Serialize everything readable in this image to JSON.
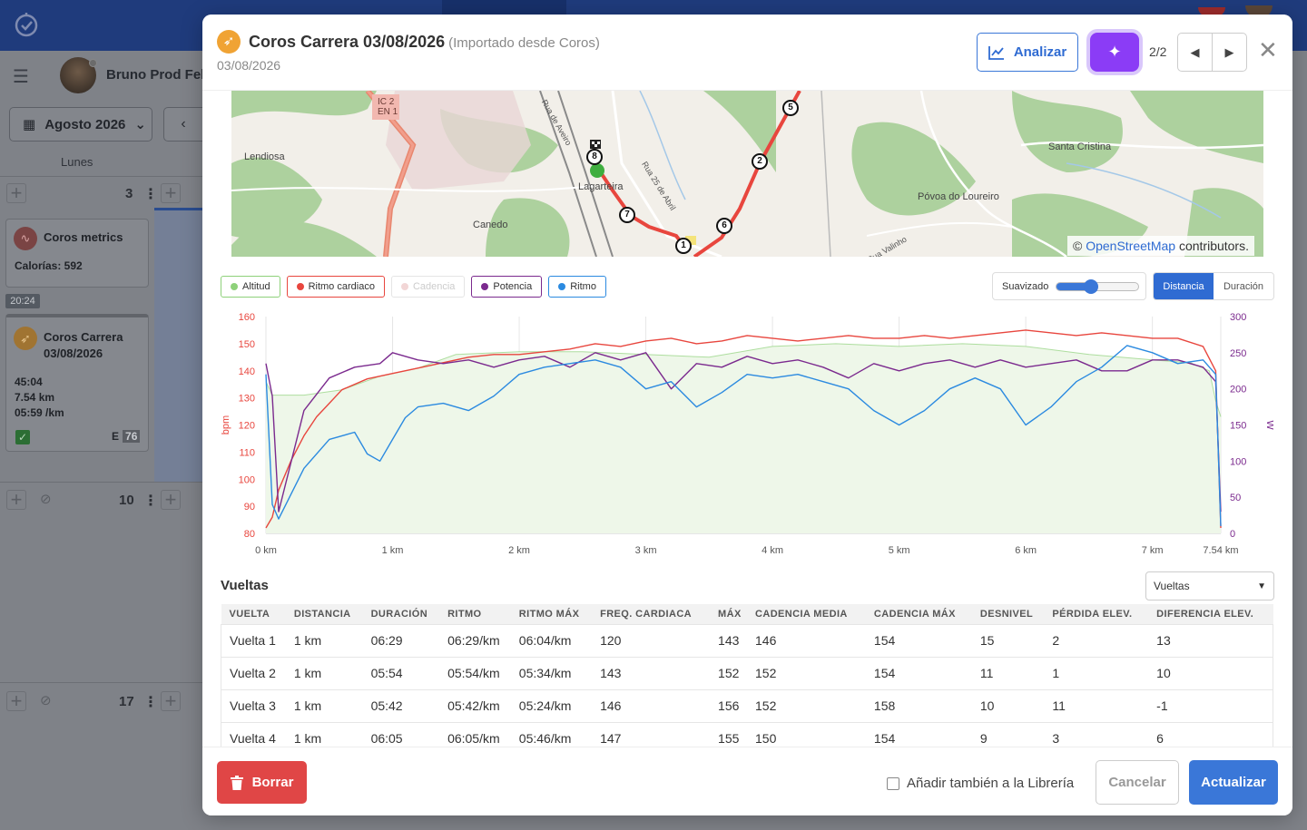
{
  "app": {
    "user_name": "Bruno Prod Feli",
    "month_label": "Agosto 2026",
    "weekday": "Lunes",
    "day_numbers": [
      "3",
      "10",
      "17"
    ],
    "cards": [
      {
        "title": "Coros metrics",
        "lines": [
          "Calorías: 592"
        ]
      },
      {
        "time_badge": "20:24",
        "title_l1": "Coros Carrera",
        "title_l2": "03/08/2026",
        "lines": [
          "45:04",
          "7.54 km",
          "05:59 /km"
        ],
        "effort_label": "E",
        "effort_value": "76"
      }
    ]
  },
  "modal": {
    "title": "Coros Carrera 03/08/2026",
    "subtitle": "(Importado desde Coros)",
    "date": "03/08/2026",
    "analyze_label": "Analizar",
    "pager": "2/2",
    "map_attribution_prefix": "©",
    "map_attribution_link": "OpenStreetMap",
    "map_attribution_suffix": "contributors.",
    "map_places": [
      "IC 2",
      "EN 1",
      "Lendiosa",
      "Lagarteira",
      "Canedo",
      "Santa Cristina",
      "Póvoa do Loureiro",
      "Rua de Aveiro",
      "Rua 25 de Abril",
      "Rua Valinho"
    ],
    "map_markers": [
      "1",
      "2",
      "5",
      "6",
      "7",
      "8"
    ],
    "legend": [
      {
        "label": "Altitud",
        "color": "#8ed17a",
        "active": true
      },
      {
        "label": "Ritmo cardiaco",
        "color": "#e8463e",
        "active": true
      },
      {
        "label": "Cadencia",
        "color": "#f2d6d6",
        "active": false
      },
      {
        "label": "Potencia",
        "color": "#7b2a8e",
        "active": true
      },
      {
        "label": "Ritmo",
        "color": "#2b8ae0",
        "active": true
      }
    ],
    "smoothing_label": "Suavizado",
    "smoothing_value": 0.42,
    "axis_toggle": [
      "Distancia",
      "Duración"
    ],
    "axis_toggle_selected": "Distancia",
    "laps_title": "Vueltas",
    "laps_select": "Vueltas",
    "laps_columns": [
      "VUELTA",
      "DISTANCIA",
      "DURACIÓN",
      "RITMO",
      "RITMO MÁX",
      "FREQ. CARDIACA",
      "MÁX",
      "CADENCIA MEDIA",
      "CADENCIA MÁX",
      "DESNIVEL",
      "PÉRDIDA ELEV.",
      "DIFERENCIA ELEV."
    ],
    "laps_rows": [
      [
        "Vuelta 1",
        "1 km",
        "06:29",
        "06:29/km",
        "06:04/km",
        "120",
        "143",
        "146",
        "154",
        "15",
        "2",
        "13"
      ],
      [
        "Vuelta 2",
        "1 km",
        "05:54",
        "05:54/km",
        "05:34/km",
        "143",
        "152",
        "152",
        "154",
        "11",
        "1",
        "10"
      ],
      [
        "Vuelta 3",
        "1 km",
        "05:42",
        "05:42/km",
        "05:24/km",
        "146",
        "156",
        "152",
        "158",
        "10",
        "11",
        "-1"
      ],
      [
        "Vuelta 4",
        "1 km",
        "06:05",
        "06:05/km",
        "05:46/km",
        "147",
        "155",
        "150",
        "154",
        "9",
        "3",
        "6"
      ]
    ],
    "delete_label": "Borrar",
    "library_label": "Añadir también a la Librería",
    "cancel_label": "Cancelar",
    "update_label": "Actualizar"
  },
  "chart_data": {
    "type": "line",
    "xlabel": "",
    "ylabel_left": "bpm",
    "ylabel_right": "W",
    "x_ticks": [
      "0 km",
      "1 km",
      "2 km",
      "3 km",
      "4 km",
      "5 km",
      "6 km",
      "7 km",
      "7.54 km"
    ],
    "x_tick_values": [
      0,
      1,
      2,
      3,
      4,
      5,
      6,
      7,
      7.54
    ],
    "xlim": [
      0,
      7.54
    ],
    "ylim_left": [
      80,
      160
    ],
    "y_ticks_left": [
      80,
      90,
      100,
      110,
      120,
      130,
      140,
      150,
      160
    ],
    "ylim_right": [
      0,
      300
    ],
    "y_ticks_right": [
      0,
      50,
      100,
      150,
      200,
      250,
      300
    ],
    "grid": "vertical",
    "series": [
      {
        "name": "Altitud",
        "axis": "left",
        "kind": "area",
        "x": [
          0,
          0.05,
          0.3,
          0.6,
          0.9,
          1.2,
          1.5,
          2.0,
          2.5,
          3.0,
          3.5,
          4.0,
          4.5,
          5.0,
          5.5,
          6.0,
          6.5,
          7.0,
          7.3,
          7.45,
          7.5,
          7.54
        ],
        "y": [
          136,
          131,
          131,
          133,
          138,
          141,
          146,
          147,
          147,
          146,
          145,
          149,
          150,
          149,
          150,
          149,
          146,
          144,
          143,
          140,
          129,
          123
        ]
      },
      {
        "name": "Ritmo cardiaco",
        "axis": "left",
        "x": [
          0,
          0.05,
          0.1,
          0.2,
          0.3,
          0.4,
          0.5,
          0.6,
          0.8,
          1.0,
          1.2,
          1.4,
          1.6,
          1.8,
          2.0,
          2.2,
          2.4,
          2.6,
          2.8,
          3.0,
          3.2,
          3.4,
          3.6,
          3.8,
          4.0,
          4.2,
          4.4,
          4.6,
          4.8,
          5.0,
          5.2,
          5.4,
          5.6,
          5.8,
          6.0,
          6.2,
          6.4,
          6.6,
          6.8,
          7.0,
          7.2,
          7.4,
          7.5,
          7.54
        ],
        "y": [
          82,
          86,
          96,
          107,
          116,
          123,
          128,
          133,
          137,
          139,
          141,
          143,
          145,
          146,
          146,
          147,
          148,
          150,
          149,
          151,
          152,
          150,
          151,
          153,
          152,
          151,
          152,
          153,
          152,
          152,
          153,
          152,
          153,
          154,
          155,
          154,
          153,
          154,
          153,
          152,
          152,
          149,
          140,
          82
        ]
      },
      {
        "name": "Potencia",
        "axis": "right",
        "x": [
          0,
          0.05,
          0.1,
          0.3,
          0.5,
          0.7,
          0.9,
          1.0,
          1.2,
          1.4,
          1.6,
          1.8,
          2.0,
          2.2,
          2.4,
          2.6,
          2.8,
          3.0,
          3.2,
          3.4,
          3.6,
          3.8,
          4.0,
          4.2,
          4.4,
          4.6,
          4.8,
          5.0,
          5.2,
          5.4,
          5.6,
          5.8,
          6.0,
          6.2,
          6.4,
          6.6,
          6.8,
          7.0,
          7.2,
          7.4,
          7.5,
          7.54
        ],
        "y": [
          235,
          190,
          30,
          170,
          215,
          230,
          235,
          250,
          240,
          235,
          240,
          230,
          240,
          245,
          230,
          250,
          240,
          250,
          200,
          235,
          230,
          245,
          235,
          240,
          230,
          215,
          235,
          225,
          235,
          240,
          230,
          240,
          230,
          235,
          240,
          225,
          225,
          240,
          240,
          230,
          210,
          30
        ]
      },
      {
        "name": "Ritmo",
        "axis": "right",
        "x": [
          0,
          0.05,
          0.1,
          0.3,
          0.5,
          0.7,
          0.8,
          0.9,
          1.0,
          1.1,
          1.2,
          1.4,
          1.6,
          1.8,
          2.0,
          2.2,
          2.4,
          2.6,
          2.8,
          3.0,
          3.2,
          3.4,
          3.6,
          3.8,
          4.0,
          4.2,
          4.4,
          4.6,
          4.8,
          5.0,
          5.2,
          5.4,
          5.6,
          5.8,
          6.0,
          6.2,
          6.4,
          6.6,
          6.8,
          7.0,
          7.2,
          7.4,
          7.5,
          7.54
        ],
        "y": [
          220,
          40,
          20,
          90,
          130,
          140,
          110,
          100,
          130,
          160,
          175,
          180,
          170,
          190,
          220,
          230,
          235,
          240,
          230,
          200,
          210,
          175,
          195,
          220,
          215,
          220,
          210,
          200,
          170,
          150,
          170,
          200,
          215,
          200,
          150,
          175,
          210,
          230,
          260,
          250,
          235,
          240,
          220,
          10
        ]
      }
    ]
  }
}
